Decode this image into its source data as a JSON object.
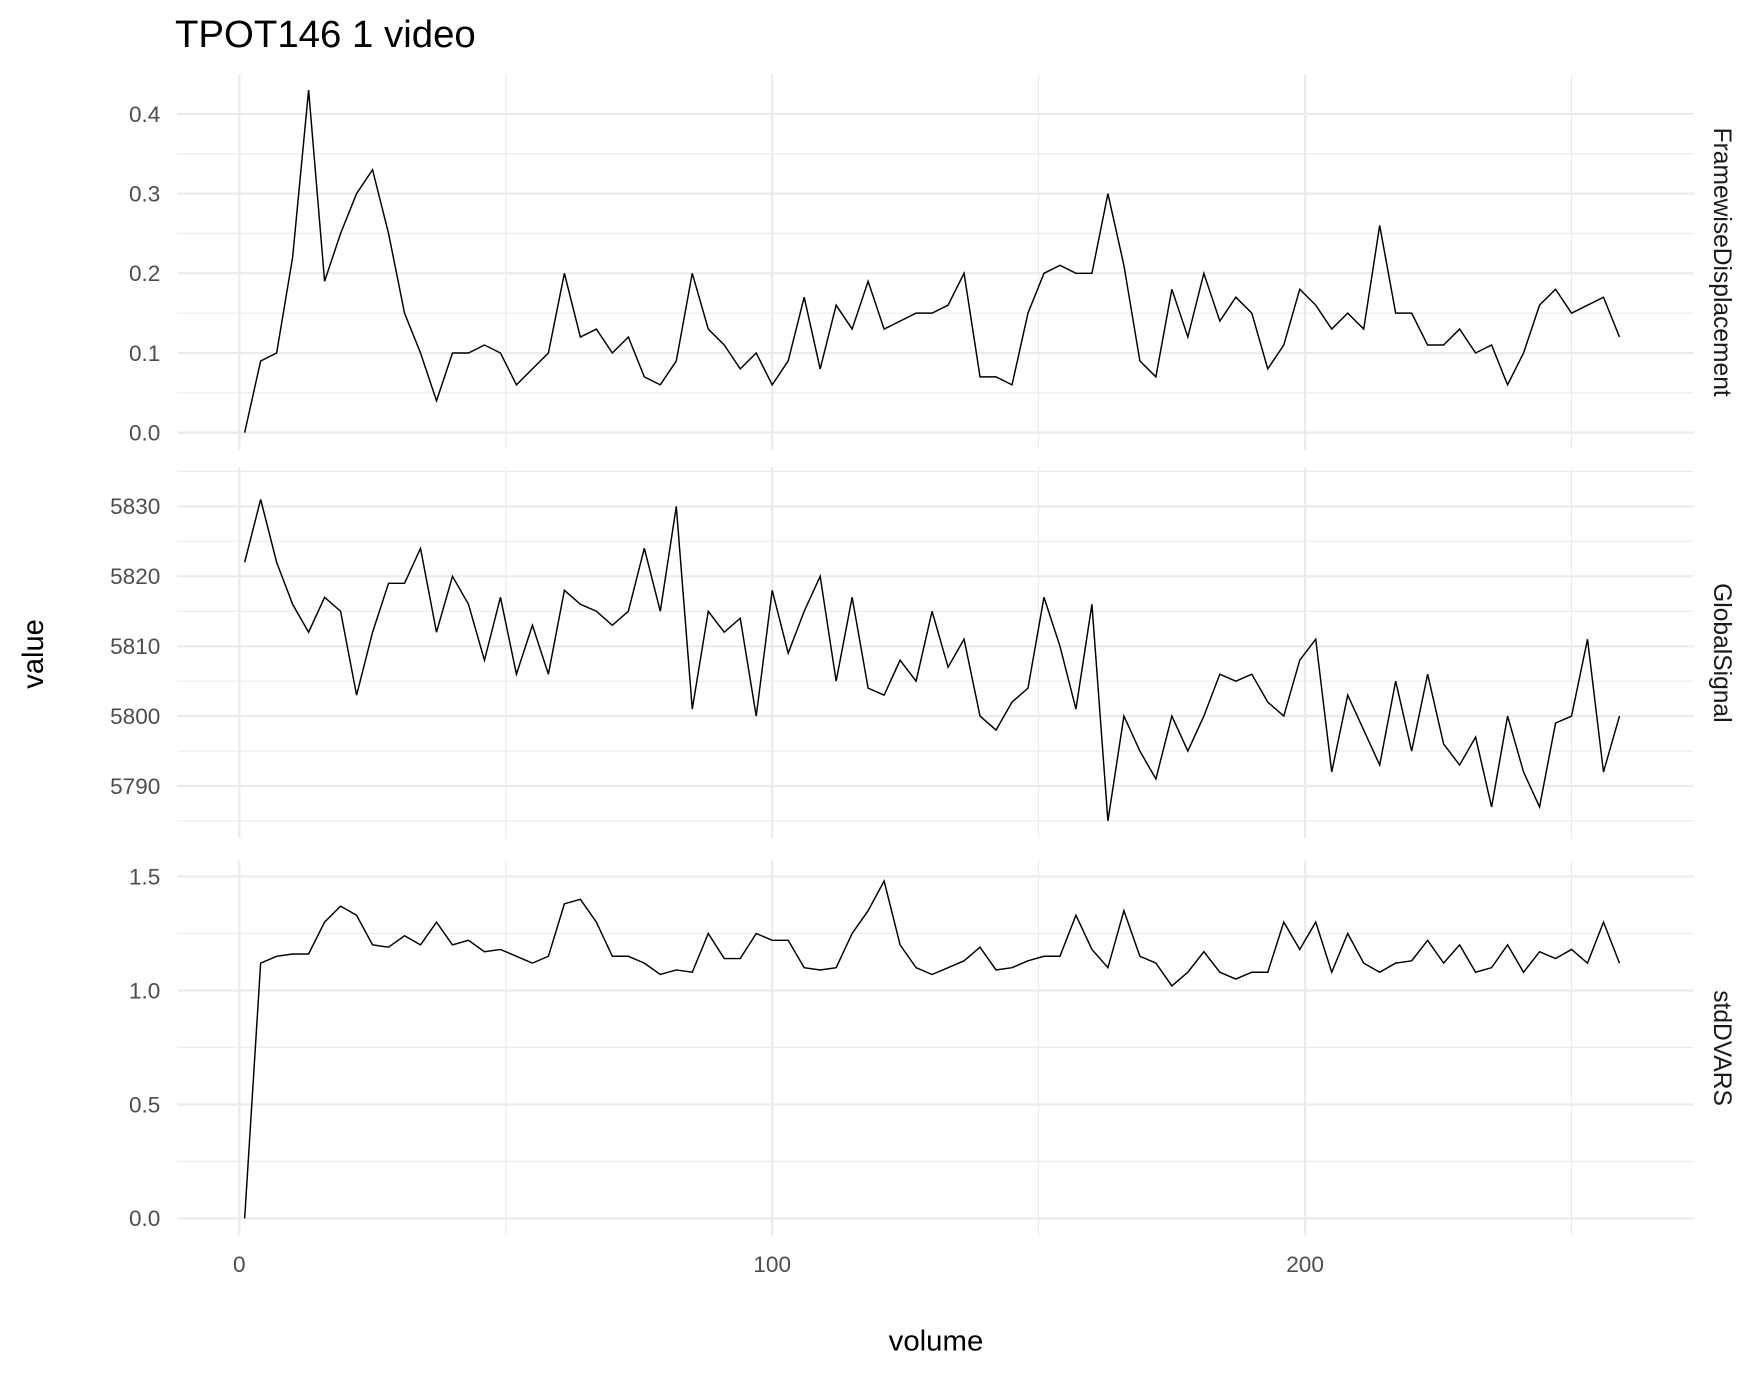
{
  "chart_data": {
    "type": "line",
    "title": "TPOT146  1  video",
    "x_label": "volume",
    "y_label": "value",
    "grid": true,
    "xlim": [
      -11.65,
      272.9
    ],
    "xticks": [
      0,
      100,
      200
    ],
    "x": [
      1,
      4,
      7,
      10,
      13,
      16,
      19,
      22,
      25,
      28,
      31,
      34,
      37,
      40,
      43,
      46,
      49,
      52,
      55,
      58,
      61,
      64,
      67,
      70,
      73,
      76,
      79,
      82,
      85,
      88,
      91,
      94,
      97,
      100,
      103,
      106,
      109,
      112,
      115,
      118,
      121,
      124,
      127,
      130,
      133,
      136,
      139,
      142,
      145,
      148,
      151,
      154,
      157,
      160,
      163,
      166,
      169,
      172,
      175,
      178,
      181,
      184,
      187,
      190,
      193,
      196,
      199,
      202,
      205,
      208,
      211,
      214,
      217,
      220,
      223,
      226,
      229,
      232,
      235,
      238,
      241,
      244,
      247,
      250,
      253,
      256,
      259
    ],
    "series": [
      {
        "name": "FramewiseDisplacement",
        "color": "#000000",
        "ylim": [
          -0.021,
          0.449
        ],
        "yticks": [
          {
            "value": 0,
            "label": "0.0"
          },
          0.1,
          0.2,
          0.3,
          0.4
        ],
        "values": [
          0.0,
          0.09,
          0.1,
          0.22,
          0.43,
          0.19,
          0.25,
          0.3,
          0.33,
          0.25,
          0.15,
          0.1,
          0.04,
          0.1,
          0.1,
          0.11,
          0.1,
          0.06,
          0.08,
          0.1,
          0.2,
          0.12,
          0.13,
          0.1,
          0.12,
          0.07,
          0.06,
          0.09,
          0.2,
          0.13,
          0.11,
          0.08,
          0.1,
          0.06,
          0.09,
          0.17,
          0.08,
          0.16,
          0.13,
          0.19,
          0.13,
          0.14,
          0.15,
          0.15,
          0.16,
          0.2,
          0.07,
          0.07,
          0.06,
          0.15,
          0.2,
          0.21,
          0.2,
          0.2,
          0.3,
          0.21,
          0.09,
          0.07,
          0.18,
          0.12,
          0.2,
          0.14,
          0.17,
          0.15,
          0.08,
          0.11,
          0.18,
          0.16,
          0.13,
          0.15,
          0.13,
          0.26,
          0.15,
          0.15,
          0.11,
          0.11,
          0.13,
          0.1,
          0.11,
          0.06,
          0.1,
          0.16,
          0.18,
          0.15,
          0.16,
          0.17,
          0.12
        ]
      },
      {
        "name": "GlobalSignal",
        "color": "#000000",
        "ylim": [
          5782.5,
          5835.6
        ],
        "yticks": [
          5790,
          5800,
          5810,
          5820,
          5830
        ],
        "values": [
          5822,
          5831,
          5822,
          5816,
          5812,
          5817,
          5815,
          5803,
          5812,
          5819,
          5819,
          5824,
          5812,
          5820,
          5816,
          5808,
          5817,
          5806,
          5813,
          5806,
          5818,
          5816,
          5815,
          5813,
          5815,
          5824,
          5815,
          5830,
          5801,
          5815,
          5812,
          5814,
          5800,
          5818,
          5809,
          5815,
          5820,
          5805,
          5817,
          5804,
          5803,
          5808,
          5805,
          5815,
          5807,
          5811,
          5800,
          5798,
          5802,
          5804,
          5817,
          5810,
          5801,
          5816,
          5785,
          5800,
          5795,
          5791,
          5800,
          5795,
          5800,
          5806,
          5805,
          5806,
          5802,
          5800,
          5808,
          5811,
          5792,
          5803,
          5798,
          5793,
          5805,
          5795,
          5806,
          5796,
          5793,
          5797,
          5787,
          5800,
          5792,
          5787,
          5799,
          5800,
          5811,
          5792,
          5800
        ]
      },
      {
        "name": "stdDVARS",
        "color": "#000000",
        "ylim": [
          -0.074,
          1.569
        ],
        "yticks": [
          {
            "value": 0,
            "label": "0.0"
          },
          0.5,
          {
            "value": 1,
            "label": "1.0"
          },
          1.5
        ],
        "values": [
          0.0,
          1.12,
          1.15,
          1.16,
          1.16,
          1.3,
          1.37,
          1.33,
          1.2,
          1.19,
          1.24,
          1.2,
          1.3,
          1.2,
          1.22,
          1.17,
          1.18,
          1.15,
          1.12,
          1.15,
          1.38,
          1.4,
          1.3,
          1.15,
          1.15,
          1.12,
          1.07,
          1.09,
          1.08,
          1.25,
          1.14,
          1.14,
          1.25,
          1.22,
          1.22,
          1.1,
          1.09,
          1.1,
          1.25,
          1.35,
          1.48,
          1.2,
          1.1,
          1.07,
          1.1,
          1.13,
          1.19,
          1.09,
          1.1,
          1.13,
          1.15,
          1.15,
          1.33,
          1.18,
          1.1,
          1.35,
          1.15,
          1.12,
          1.02,
          1.08,
          1.17,
          1.08,
          1.05,
          1.08,
          1.08,
          1.3,
          1.18,
          1.3,
          1.08,
          1.25,
          1.12,
          1.08,
          1.12,
          1.13,
          1.22,
          1.12,
          1.2,
          1.08,
          1.1,
          1.2,
          1.08,
          1.17,
          1.14,
          1.18,
          1.12,
          1.3,
          1.12
        ]
      }
    ]
  }
}
